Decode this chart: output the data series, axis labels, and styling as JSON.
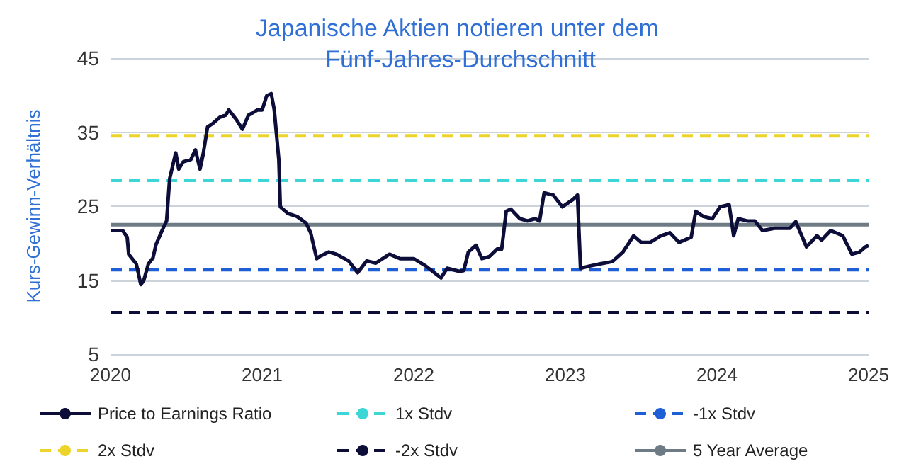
{
  "chart_data": {
    "type": "line",
    "title": "Japanische Aktien notieren unter dem Fünf-Jahres-Durchschnitt",
    "ylabel": "Kurs-Gewinn-Verhältnis",
    "xlim": [
      2020,
      2025
    ],
    "xticks": [
      2020,
      2021,
      2022,
      2023,
      2024,
      2025
    ],
    "ylim": [
      5,
      45
    ],
    "yticks": [
      5,
      15,
      25,
      35,
      45
    ],
    "grid": "y",
    "legend": "bottom",
    "marker": "none",
    "series": [
      {
        "name": "Price to Earnings Ratio",
        "color": "#0d0d3a",
        "line_style": "solid",
        "x": [
          2020.0,
          2020.08,
          2020.11,
          2020.12,
          2020.17,
          2020.2,
          2020.22,
          2020.25,
          2020.28,
          2020.3,
          2020.34,
          2020.37,
          2020.39,
          2020.43,
          2020.45,
          2020.48,
          2020.53,
          2020.56,
          2020.59,
          2020.61,
          2020.64,
          2020.67,
          2020.72,
          2020.76,
          2020.78,
          2020.83,
          2020.87,
          2020.91,
          2020.97,
          2021.0,
          2021.03,
          2021.06,
          2021.08,
          2021.11,
          2021.12,
          2021.17,
          2021.23,
          2021.29,
          2021.32,
          2021.36,
          2021.38,
          2021.44,
          2021.49,
          2021.57,
          2021.63,
          2021.69,
          2021.75,
          2021.84,
          2021.91,
          2022.0,
          2022.08,
          2022.18,
          2022.22,
          2022.3,
          2022.33,
          2022.36,
          2022.41,
          2022.45,
          2022.5,
          2022.55,
          2022.58,
          2022.61,
          2022.64,
          2022.7,
          2022.75,
          2022.8,
          2022.83,
          2022.86,
          2022.92,
          2022.98,
          2023.05,
          2023.08,
          2023.1,
          2023.16,
          2023.23,
          2023.31,
          2023.38,
          2023.45,
          2023.5,
          2023.56,
          2023.63,
          2023.69,
          2023.75,
          2023.83,
          2023.86,
          2023.91,
          2023.97,
          2024.02,
          2024.08,
          2024.11,
          2024.14,
          2024.2,
          2024.25,
          2024.3,
          2024.38,
          2024.48,
          2024.52,
          2024.59,
          2024.66,
          2024.69,
          2024.75,
          2024.83,
          2024.89,
          2024.94,
          2024.98,
          2025.0
        ],
        "values": [
          21.7,
          21.7,
          20.8,
          18.5,
          17.2,
          14.4,
          15.0,
          17.2,
          18,
          19.8,
          21.7,
          23,
          28.7,
          32.2,
          30,
          31,
          31.3,
          32.6,
          30,
          31.9,
          35.7,
          36.1,
          37,
          37.3,
          38,
          36.7,
          35.4,
          37.3,
          38,
          38,
          39.9,
          40.2,
          38,
          31.3,
          24.9,
          24,
          23.6,
          22.7,
          21.4,
          17.9,
          18.2,
          18.8,
          18.5,
          17.6,
          16,
          17.6,
          17.3,
          18.5,
          17.9,
          17.9,
          16.9,
          15.3,
          16.6,
          16.2,
          16.3,
          18.8,
          19.7,
          17.9,
          18.2,
          19.2,
          19.2,
          24.3,
          24.6,
          23.3,
          23,
          23.3,
          23,
          26.8,
          26.5,
          24.9,
          25.9,
          26.5,
          16.6,
          16.9,
          17.2,
          17.5,
          18.8,
          21,
          20.1,
          20.1,
          21,
          21.4,
          20.1,
          20.8,
          24.3,
          23.6,
          23.3,
          24.9,
          25.2,
          21,
          23.3,
          23,
          23,
          21.7,
          22,
          22,
          22.9,
          19.5,
          21,
          20.4,
          21.7,
          21,
          18.5,
          18.8,
          19.5,
          19.7
        ]
      },
      {
        "name": "1x Stdv",
        "color": "#3dd6d6",
        "line_style": "dashed",
        "x": [
          2020,
          2025
        ],
        "values": [
          28.5,
          28.5
        ]
      },
      {
        "name": "-1x Stdv",
        "color": "#1f5fd6",
        "line_style": "dashed",
        "x": [
          2020,
          2025
        ],
        "values": [
          16.4,
          16.4
        ]
      },
      {
        "name": "2x Stdv",
        "color": "#ecd42a",
        "line_style": "dashed",
        "x": [
          2020,
          2025
        ],
        "values": [
          34.5,
          34.5
        ]
      },
      {
        "name": "-2x Stdv",
        "color": "#0d0d3a",
        "line_style": "dashed",
        "x": [
          2020,
          2025
        ],
        "values": [
          10.6,
          10.6
        ]
      },
      {
        "name": "5 Year Average",
        "color": "#6e7b85",
        "line_style": "solid",
        "x": [
          2020,
          2025
        ],
        "values": [
          22.5,
          22.5
        ]
      }
    ]
  }
}
